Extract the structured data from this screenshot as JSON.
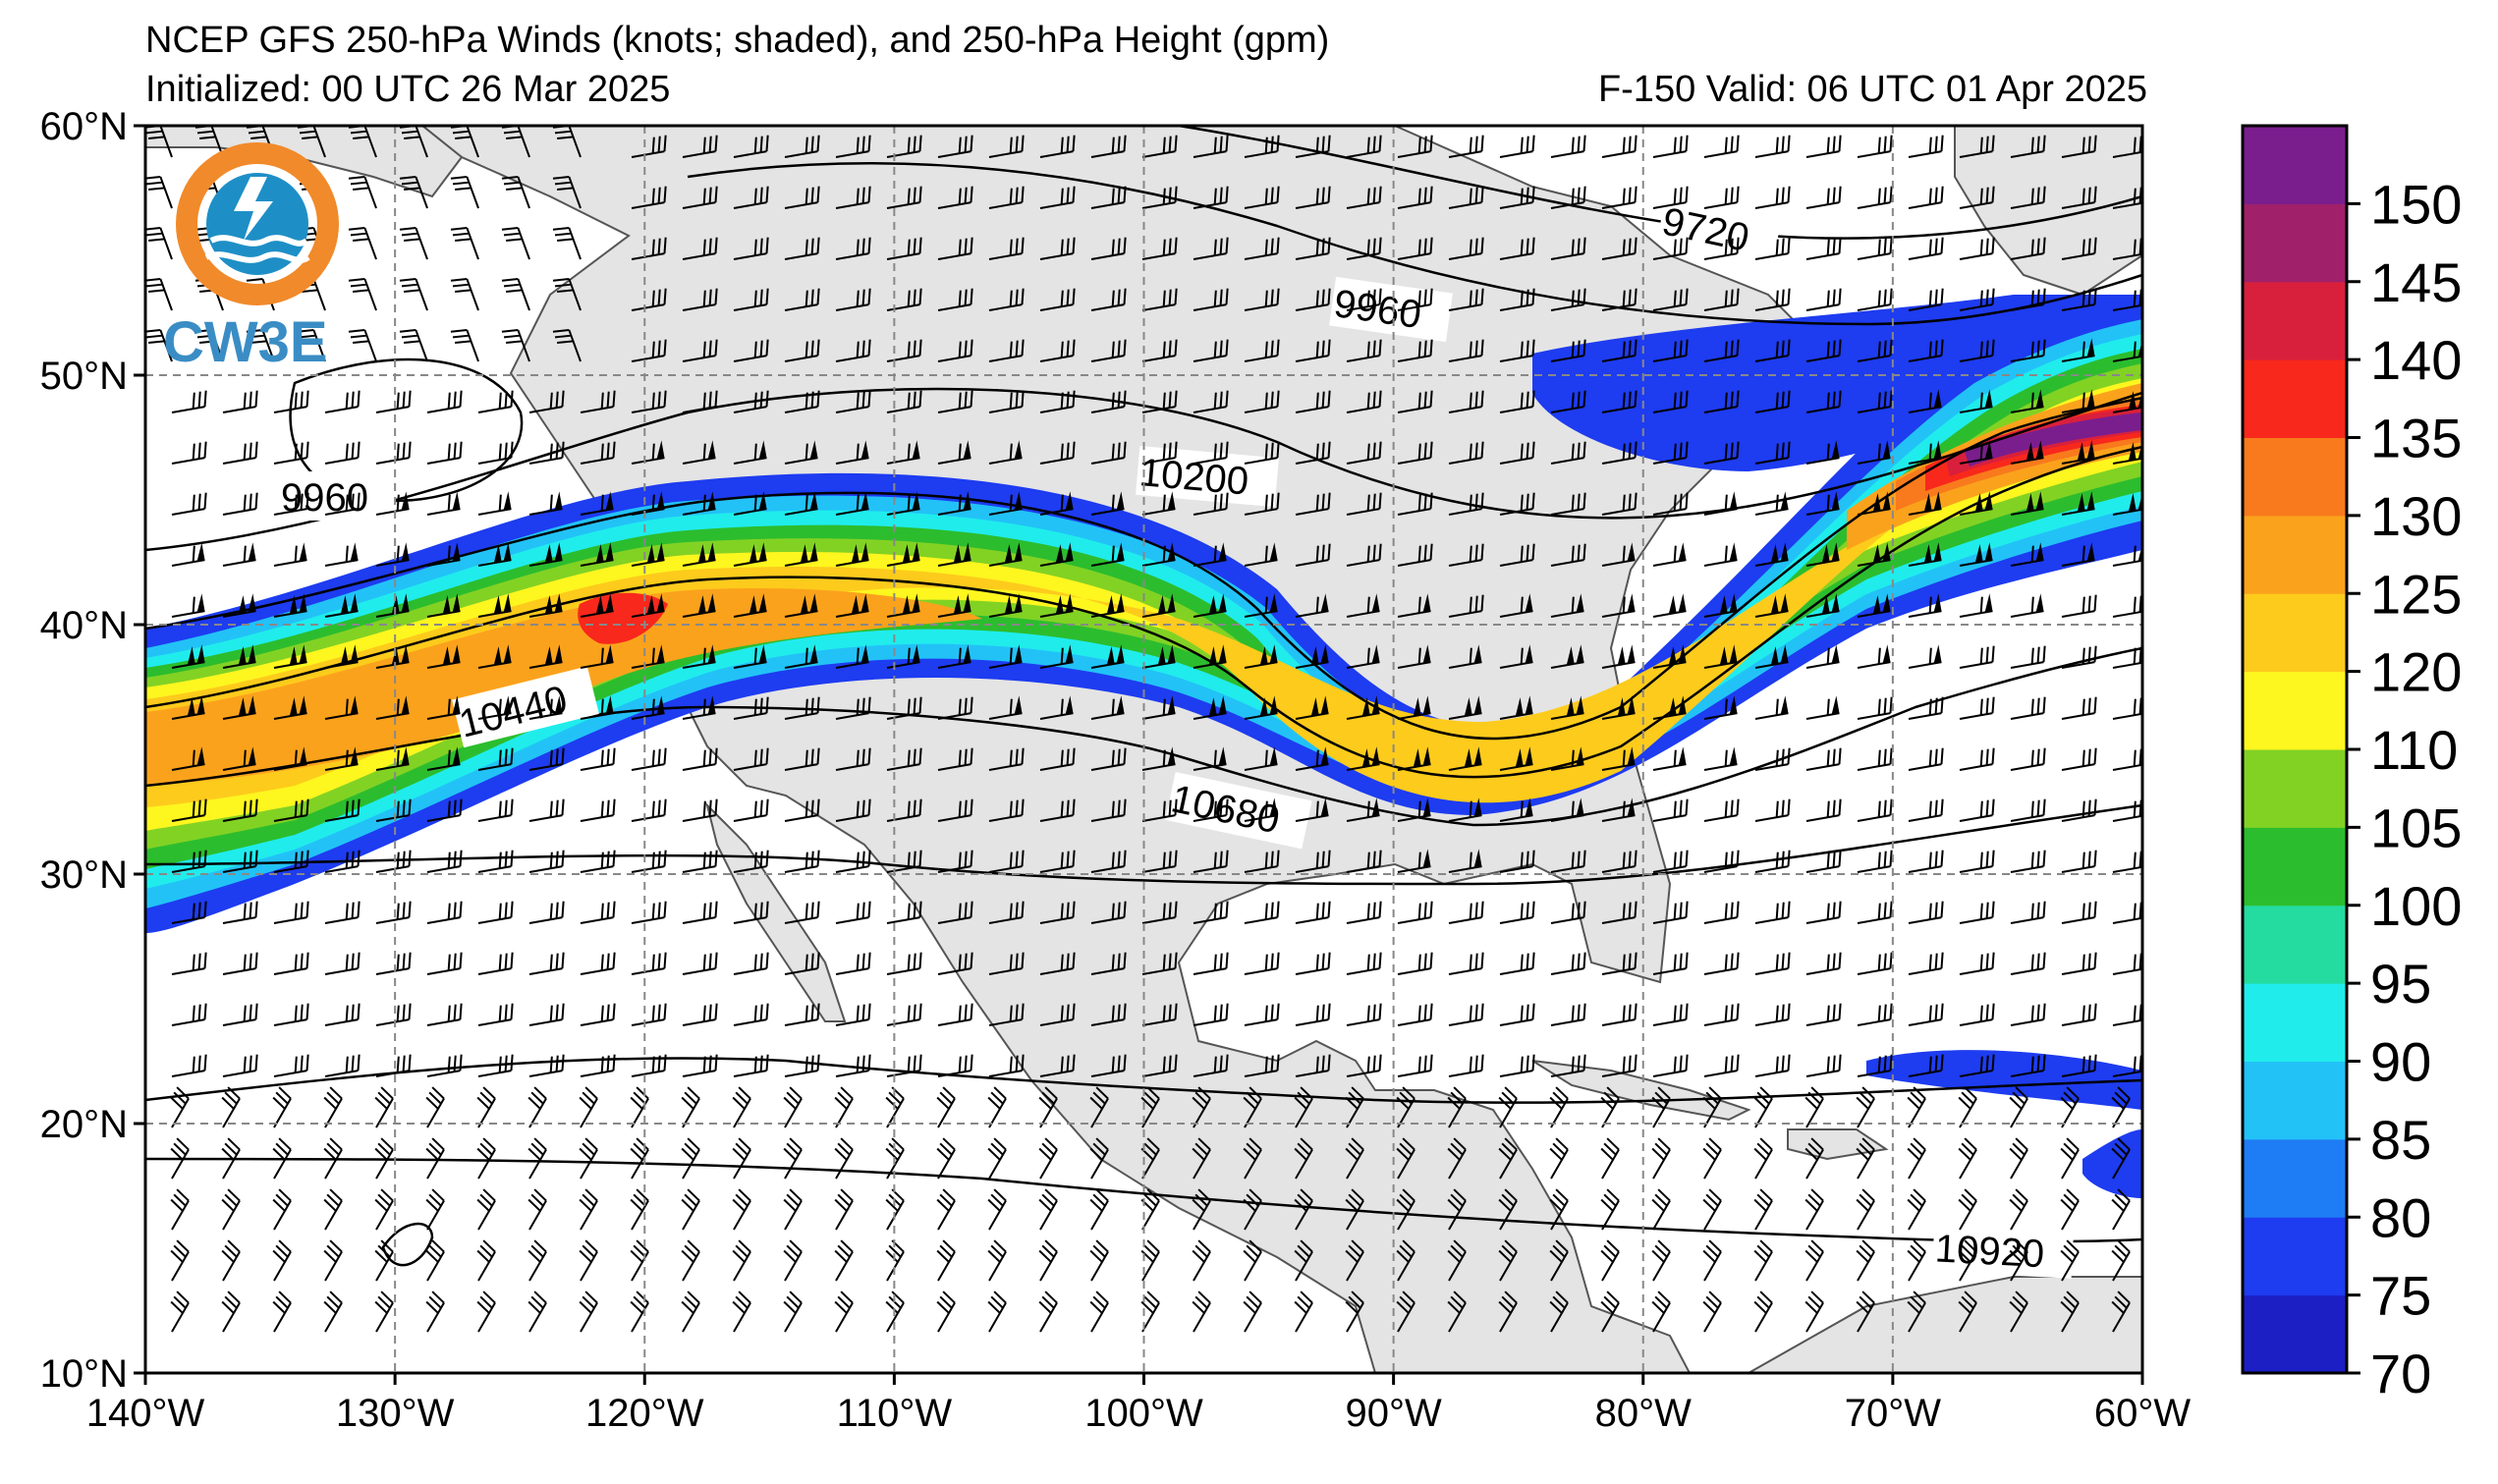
{
  "header": {
    "title": "NCEP GFS 250-hPa Winds (knots; shaded), and 250-hPa Height (gpm)",
    "initialized": "Initialized: 00 UTC 26 Mar 2025",
    "valid": "F-150  Valid: 06 UTC 01 Apr 2025"
  },
  "logo": {
    "text": "CW3E"
  },
  "map": {
    "lon_range": [
      -140,
      -60
    ],
    "lat_range": [
      10,
      60
    ],
    "lat_ticks": [
      {
        "value": 60,
        "label": "60°N"
      },
      {
        "value": 50,
        "label": "50°N"
      },
      {
        "value": 40,
        "label": "40°N"
      },
      {
        "value": 30,
        "label": "30°N"
      },
      {
        "value": 20,
        "label": "20°N"
      },
      {
        "value": 10,
        "label": "10°N"
      }
    ],
    "lon_ticks": [
      {
        "value": -140,
        "label": "140°W"
      },
      {
        "value": -130,
        "label": "130°W"
      },
      {
        "value": -120,
        "label": "120°W"
      },
      {
        "value": -110,
        "label": "110°W"
      },
      {
        "value": -100,
        "label": "100°W"
      },
      {
        "value": -90,
        "label": "90°W"
      },
      {
        "value": -80,
        "label": "80°W"
      },
      {
        "value": -70,
        "label": "70°W"
      },
      {
        "value": -60,
        "label": "60°W"
      }
    ],
    "grid": true,
    "height_contour_labels": [
      "9720",
      "9960",
      "10200",
      "10440",
      "10680",
      "10920",
      "9960"
    ]
  },
  "colorbar": {
    "levels": [
      70,
      75,
      80,
      85,
      90,
      95,
      100,
      105,
      110,
      120,
      125,
      130,
      135,
      140,
      145,
      150
    ],
    "tick_labels": [
      "70",
      "75",
      "80",
      "85",
      "90",
      "95",
      "100",
      "105",
      "110",
      "120",
      "125",
      "130",
      "135",
      "140",
      "145",
      "150"
    ],
    "colors": [
      "#1c1fc4",
      "#1e3cf0",
      "#1e7cf5",
      "#22c2f7",
      "#20ecec",
      "#24dca0",
      "#2cbd2e",
      "#82d224",
      "#fef61f",
      "#fdcb1c",
      "#fba21c",
      "#f87a1c",
      "#f8281c",
      "#d8203c",
      "#a0206a",
      "#7a1e8e"
    ]
  }
}
